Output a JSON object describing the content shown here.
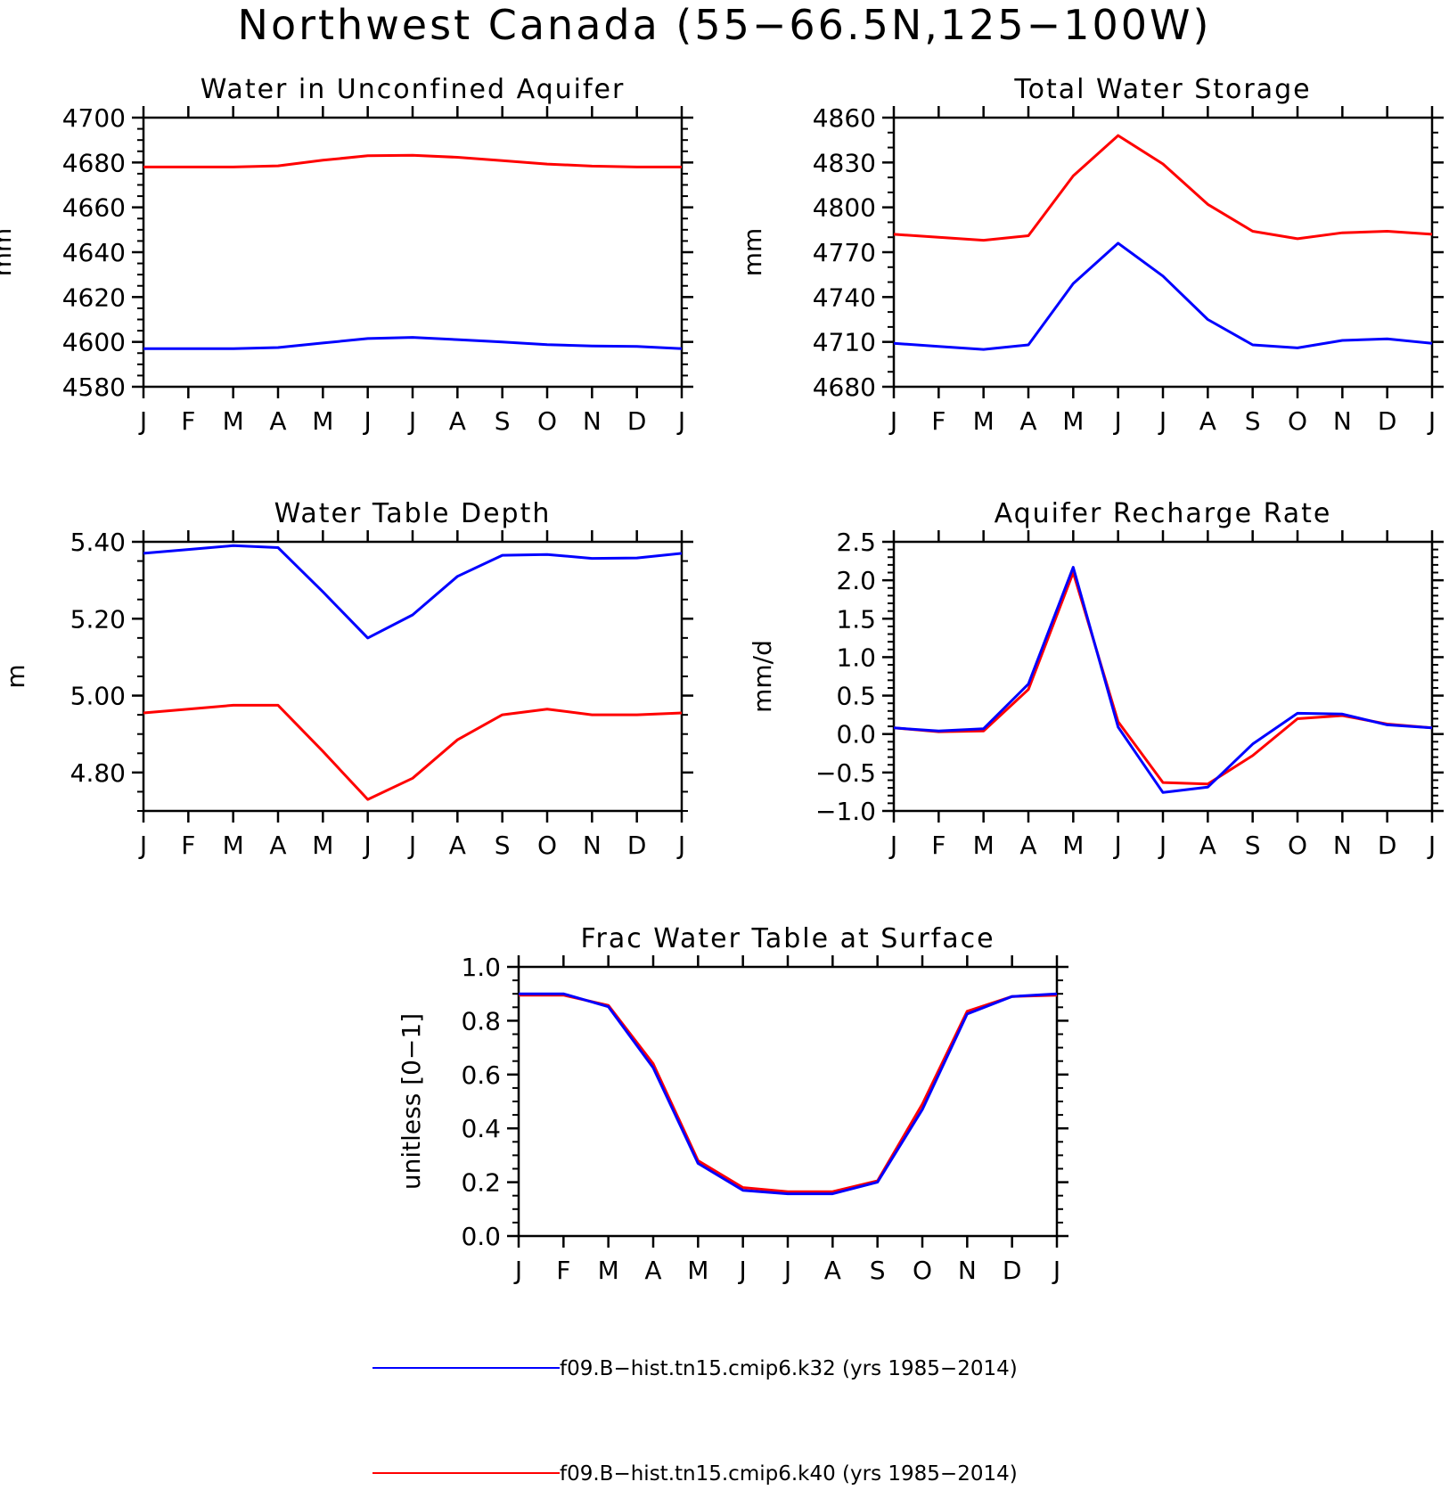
{
  "title": "Northwest Canada (55−66.5N,125−100W)",
  "months": [
    "J",
    "F",
    "M",
    "A",
    "M",
    "J",
    "J",
    "A",
    "S",
    "O",
    "N",
    "D",
    "J"
  ],
  "colors": {
    "k32": "#0000ff",
    "k40": "#ff0000"
  },
  "legend": [
    {
      "label": "f09.B−hist.tn15.cmip6.k32 (yrs 1985−2014)",
      "color": "#0000ff"
    },
    {
      "label": "f09.B−hist.tn15.cmip6.k40 (yrs 1985−2014)",
      "color": "#ff0000"
    }
  ],
  "chart_data": [
    {
      "type": "line",
      "title": "Water in Unconfined Aquifer",
      "ylabel": "mm",
      "ylim": [
        4580,
        4700
      ],
      "yticks": [
        4580,
        4600,
        4620,
        4640,
        4660,
        4680,
        4700
      ],
      "ytick_labels": [
        "4580",
        "4600",
        "4620",
        "4640",
        "4660",
        "4680",
        "4700"
      ],
      "y_minor_step": 5,
      "categories": [
        "J",
        "F",
        "M",
        "A",
        "M",
        "J",
        "J",
        "A",
        "S",
        "O",
        "N",
        "D",
        "J"
      ],
      "series": [
        {
          "key": "k32",
          "values": [
            4597,
            4597,
            4597,
            4597.5,
            4599.5,
            4601.5,
            4602,
            4601,
            4600,
            4598.8,
            4598.2,
            4598,
            4597
          ]
        },
        {
          "key": "k40",
          "values": [
            4678,
            4678,
            4678,
            4678.5,
            4681,
            4683,
            4683.2,
            4682.3,
            4680.8,
            4679.3,
            4678.4,
            4678,
            4678
          ]
        }
      ]
    },
    {
      "type": "line",
      "title": "Total Water Storage",
      "ylabel": "mm",
      "ylim": [
        4680,
        4860
      ],
      "yticks": [
        4680,
        4710,
        4740,
        4770,
        4800,
        4830,
        4860
      ],
      "ytick_labels": [
        "4680",
        "4710",
        "4740",
        "4770",
        "4800",
        "4830",
        "4860"
      ],
      "y_minor_step": 10,
      "categories": [
        "J",
        "F",
        "M",
        "A",
        "M",
        "J",
        "J",
        "A",
        "S",
        "O",
        "N",
        "D",
        "J"
      ],
      "series": [
        {
          "key": "k32",
          "values": [
            4709,
            4707,
            4705,
            4708,
            4749,
            4776,
            4754,
            4725,
            4708,
            4706,
            4711,
            4712,
            4709
          ]
        },
        {
          "key": "k40",
          "values": [
            4782,
            4780,
            4778,
            4781,
            4821,
            4848,
            4829,
            4802,
            4784,
            4779,
            4783,
            4784,
            4782
          ]
        }
      ]
    },
    {
      "type": "line",
      "title": "Water Table Depth",
      "ylabel": "m",
      "ylim": [
        4.7,
        5.4
      ],
      "yticks": [
        4.8,
        5.0,
        5.2,
        5.4
      ],
      "ytick_labels": [
        "4.80",
        "5.00",
        "5.20",
        "5.40"
      ],
      "y_minor_step": 0.05,
      "categories": [
        "J",
        "F",
        "M",
        "A",
        "M",
        "J",
        "J",
        "A",
        "S",
        "O",
        "N",
        "D",
        "J"
      ],
      "series": [
        {
          "key": "k32",
          "values": [
            5.37,
            5.38,
            5.39,
            5.385,
            5.27,
            5.15,
            5.21,
            5.31,
            5.365,
            5.367,
            5.357,
            5.358,
            5.37
          ]
        },
        {
          "key": "k40",
          "values": [
            4.955,
            4.965,
            4.975,
            4.975,
            4.855,
            4.73,
            4.785,
            4.885,
            4.95,
            4.965,
            4.95,
            4.95,
            4.955
          ]
        }
      ]
    },
    {
      "type": "line",
      "title": "Aquifer Recharge Rate",
      "ylabel": "mm/d",
      "ylim": [
        -1.0,
        2.5
      ],
      "yticks": [
        -1.0,
        -0.5,
        0.0,
        0.5,
        1.0,
        1.5,
        2.0,
        2.5
      ],
      "ytick_labels": [
        "−1.0",
        "−0.5",
        "0.0",
        "0.5",
        "1.0",
        "1.5",
        "2.0",
        "2.5"
      ],
      "y_minor_step": 0.1,
      "categories": [
        "J",
        "F",
        "M",
        "A",
        "M",
        "J",
        "J",
        "A",
        "S",
        "O",
        "N",
        "D",
        "J"
      ],
      "series": [
        {
          "key": "k40",
          "values": [
            0.08,
            0.03,
            0.04,
            0.58,
            2.1,
            0.16,
            -0.63,
            -0.65,
            -0.28,
            0.2,
            0.24,
            0.13,
            0.08
          ]
        },
        {
          "key": "k32",
          "values": [
            0.08,
            0.04,
            0.07,
            0.65,
            2.17,
            0.09,
            -0.76,
            -0.69,
            -0.13,
            0.27,
            0.26,
            0.12,
            0.08
          ]
        }
      ]
    },
    {
      "type": "line",
      "title": "Frac Water Table at Surface",
      "ylabel": "unitless [0−1]",
      "ylim": [
        0.0,
        1.0
      ],
      "yticks": [
        0.0,
        0.2,
        0.4,
        0.6,
        0.8,
        1.0
      ],
      "ytick_labels": [
        "0.0",
        "0.2",
        "0.4",
        "0.6",
        "0.8",
        "1.0"
      ],
      "y_minor_step": 0.05,
      "categories": [
        "J",
        "F",
        "M",
        "A",
        "M",
        "J",
        "J",
        "A",
        "S",
        "O",
        "N",
        "D",
        "J"
      ],
      "series": [
        {
          "key": "k40",
          "values": [
            0.895,
            0.895,
            0.857,
            0.64,
            0.28,
            0.18,
            0.165,
            0.165,
            0.205,
            0.49,
            0.835,
            0.89,
            0.895
          ]
        },
        {
          "key": "k32",
          "values": [
            0.9,
            0.9,
            0.852,
            0.625,
            0.27,
            0.17,
            0.157,
            0.157,
            0.2,
            0.47,
            0.825,
            0.89,
            0.9
          ]
        }
      ]
    }
  ]
}
